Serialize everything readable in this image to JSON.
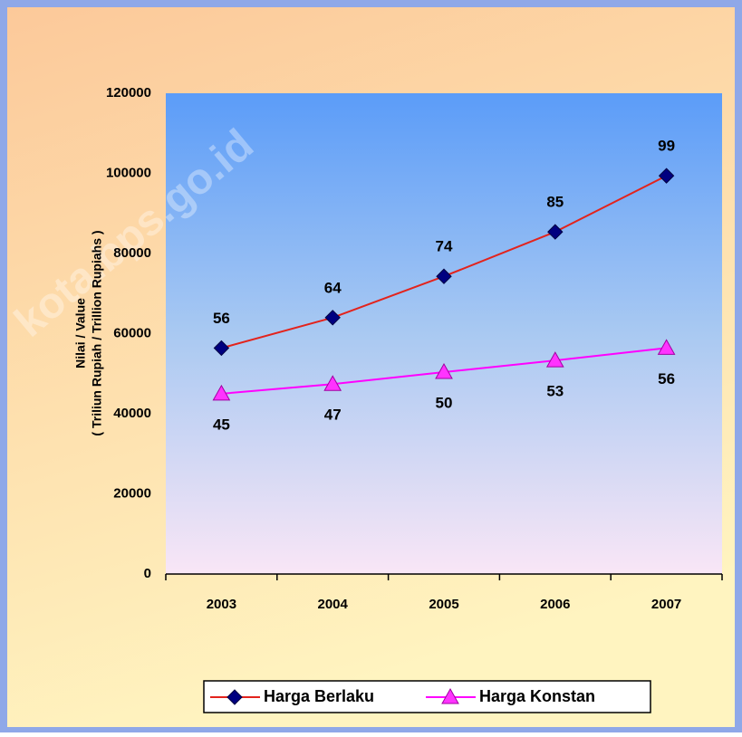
{
  "chart_data": {
    "type": "line",
    "ylabel": [
      "Nilai / Value",
      "( Triliun Rupiah / Trillion Rupiahs )"
    ],
    "watermark": "kota.bps.go.id",
    "categories": [
      "2003",
      "2004",
      "2005",
      "2006",
      "2007"
    ],
    "series": [
      {
        "name": "Harga Berlaku",
        "color": "#e3231c",
        "marker_color": "#000080",
        "marker": "diamond",
        "values": [
          56400,
          64000,
          74300,
          85400,
          99400
        ],
        "value_labels": [
          "56",
          "64",
          "74",
          "85",
          "99"
        ]
      },
      {
        "name": "Harga Konstan",
        "color": "#ff00ff",
        "marker_color": "#ff33ff",
        "marker": "triangle",
        "values": [
          45000,
          47400,
          50400,
          53300,
          56400
        ],
        "value_labels": [
          "45",
          "47",
          "50",
          "53",
          "56"
        ]
      }
    ],
    "ylim": [
      0,
      120000
    ],
    "yticks": [
      0,
      20000,
      40000,
      60000,
      80000,
      100000,
      120000
    ],
    "grid": false,
    "legend": "bottom"
  }
}
